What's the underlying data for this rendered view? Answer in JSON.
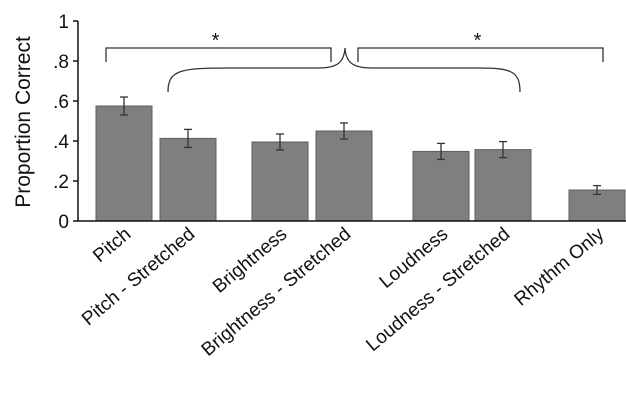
{
  "chart_data": {
    "type": "bar",
    "title": "",
    "xlabel": "",
    "ylabel": "Proportion Correct",
    "ylim": [
      0,
      1
    ],
    "yticks": [
      0,
      0.2,
      0.4,
      0.6,
      0.8,
      1
    ],
    "ytick_labels": [
      "0",
      ".2",
      ".4",
      ".6",
      ".8",
      "1"
    ],
    "categories": [
      "Pitch",
      "Pitch - Stretched",
      "Brightness",
      "Brightness - Stretched",
      "Loudness",
      "Loudness - Stretched",
      "Rhythm Only"
    ],
    "values": [
      0.575,
      0.413,
      0.395,
      0.45,
      0.348,
      0.357,
      0.155
    ],
    "errors": [
      0.045,
      0.045,
      0.04,
      0.04,
      0.04,
      0.04,
      0.022
    ],
    "bar_color": "#7f7f7f",
    "grid": false,
    "significance": [
      {
        "label": "*",
        "from": 0,
        "to": 3
      },
      {
        "label": "*",
        "from": 3,
        "to": 6
      }
    ]
  }
}
